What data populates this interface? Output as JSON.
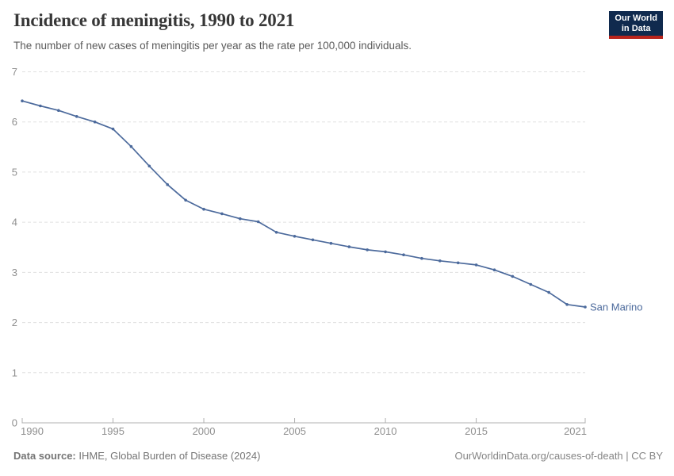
{
  "header": {
    "title": "Incidence of meningitis, 1990 to 2021",
    "subtitle": "The number of new cases of meningitis per year as the rate per 100,000 individuals.",
    "logo": {
      "line1": "Our World",
      "line2": "in Data",
      "bg_color": "#102a4e",
      "accent_color": "#b9241c"
    }
  },
  "chart_data": {
    "type": "line",
    "title": "Incidence of meningitis, 1990 to 2021",
    "xlabel": "",
    "ylabel": "",
    "xlim": [
      1990,
      2021
    ],
    "ylim": [
      0,
      7
    ],
    "x_ticks": [
      1990,
      1995,
      2000,
      2005,
      2010,
      2015,
      2021
    ],
    "y_ticks": [
      0,
      1,
      2,
      3,
      4,
      5,
      6,
      7
    ],
    "grid": "horizontal-dashed",
    "legend": "end-of-line-label",
    "x": [
      1990,
      1991,
      1992,
      1993,
      1994,
      1995,
      1996,
      1997,
      1998,
      1999,
      2000,
      2001,
      2002,
      2003,
      2004,
      2005,
      2006,
      2007,
      2008,
      2009,
      2010,
      2011,
      2012,
      2013,
      2014,
      2015,
      2016,
      2017,
      2018,
      2019,
      2020,
      2021
    ],
    "series": [
      {
        "name": "San Marino",
        "color": "#4c6a9c",
        "values": [
          6.42,
          6.32,
          6.23,
          6.11,
          6.0,
          5.86,
          5.51,
          5.12,
          4.75,
          4.44,
          4.26,
          4.17,
          4.07,
          4.01,
          3.8,
          3.72,
          3.65,
          3.58,
          3.51,
          3.45,
          3.41,
          3.35,
          3.28,
          3.23,
          3.19,
          3.15,
          3.05,
          2.92,
          2.76,
          2.6,
          2.36,
          2.31
        ]
      }
    ],
    "colors": {
      "gridline": "#e0e0e0",
      "axis": "#b0b0b0",
      "tick_label": "#8f8f8f"
    }
  },
  "footer": {
    "source_label": "Data source:",
    "source_text": "IHME, Global Burden of Disease (2024)",
    "rights": "OurWorldinData.org/causes-of-death | CC BY"
  }
}
